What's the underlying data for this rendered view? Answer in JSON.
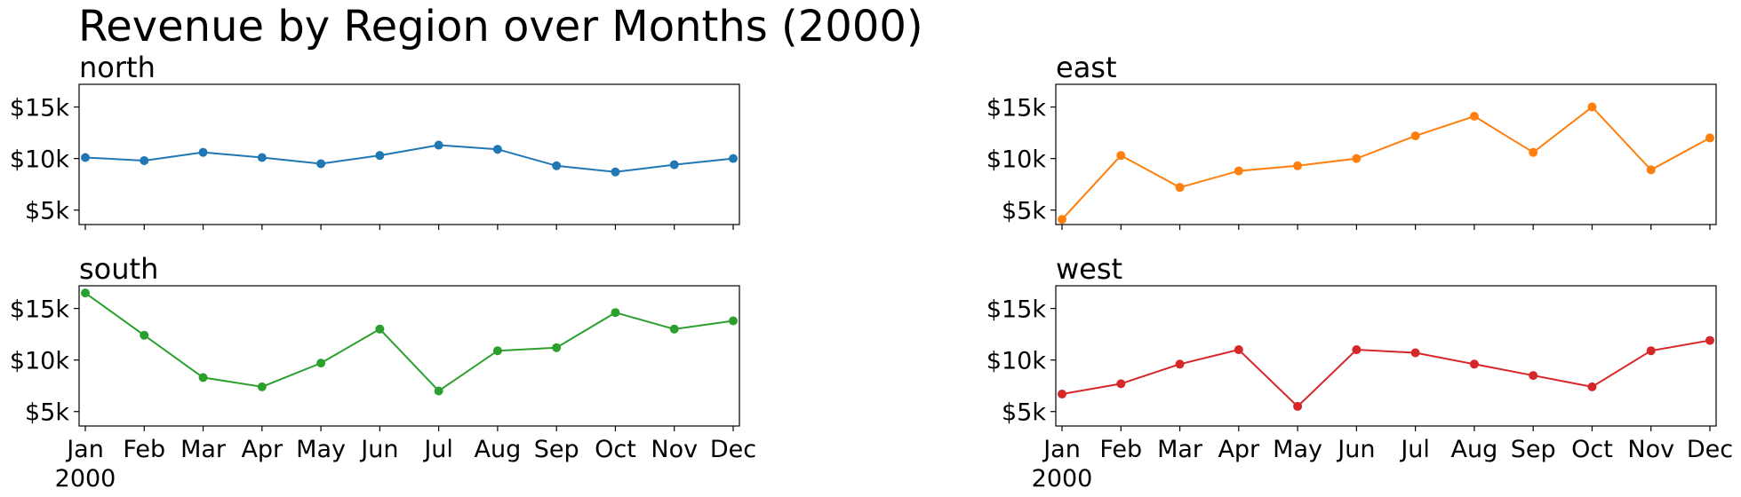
{
  "title": "Revenue by Region over Months (2000)",
  "chart_data": [
    {
      "type": "line",
      "title": "north",
      "color": "#1f77b4",
      "categories": [
        "Jan",
        "Feb",
        "Mar",
        "Apr",
        "May",
        "Jun",
        "Jul",
        "Aug",
        "Sep",
        "Oct",
        "Nov",
        "Dec"
      ],
      "values": [
        10100,
        9800,
        10600,
        10100,
        9500,
        10300,
        11300,
        10900,
        9300,
        8700,
        9400,
        10000
      ],
      "ylim": [
        3600,
        17200
      ],
      "yticks": [
        5000,
        10000,
        15000
      ],
      "ytick_labels": [
        "$5k",
        "$10k",
        "$15k"
      ],
      "xtick_labels_visible": false
    },
    {
      "type": "line",
      "title": "east",
      "color": "#ff7f0e",
      "categories": [
        "Jan",
        "Feb",
        "Mar",
        "Apr",
        "May",
        "Jun",
        "Jul",
        "Aug",
        "Sep",
        "Oct",
        "Nov",
        "Dec"
      ],
      "values": [
        4100,
        10300,
        7200,
        8800,
        9300,
        10000,
        12200,
        14100,
        10600,
        15000,
        8900,
        12000
      ],
      "ylim": [
        3600,
        17200
      ],
      "yticks": [
        5000,
        10000,
        15000
      ],
      "ytick_labels": [
        "$5k",
        "$10k",
        "$15k"
      ],
      "xtick_labels_visible": false
    },
    {
      "type": "line",
      "title": "south",
      "color": "#2ca02c",
      "categories": [
        "Jan",
        "Feb",
        "Mar",
        "Apr",
        "May",
        "Jun",
        "Jul",
        "Aug",
        "Sep",
        "Oct",
        "Nov",
        "Dec"
      ],
      "values": [
        16500,
        12400,
        8300,
        7400,
        9700,
        13000,
        7000,
        10900,
        11200,
        14600,
        13000,
        13800
      ],
      "ylim": [
        3600,
        17200
      ],
      "yticks": [
        5000,
        10000,
        15000
      ],
      "ytick_labels": [
        "$5k",
        "$10k",
        "$15k"
      ],
      "xtick_labels_visible": true,
      "xtick_labels": [
        "Jan",
        "Feb",
        "Mar",
        "Apr",
        "May",
        "Jun",
        "Jul",
        "Aug",
        "Sep",
        "Oct",
        "Nov",
        "Dec"
      ],
      "year_label": "2000"
    },
    {
      "type": "line",
      "title": "west",
      "color": "#d62728",
      "categories": [
        "Jan",
        "Feb",
        "Mar",
        "Apr",
        "May",
        "Jun",
        "Jul",
        "Aug",
        "Sep",
        "Oct",
        "Nov",
        "Dec"
      ],
      "values": [
        6700,
        7700,
        9600,
        11000,
        5500,
        11000,
        10700,
        9600,
        8500,
        7400,
        10900,
        11900
      ],
      "ylim": [
        3600,
        17200
      ],
      "yticks": [
        5000,
        10000,
        15000
      ],
      "ytick_labels": [
        "$5k",
        "$10k",
        "$15k"
      ],
      "xtick_labels_visible": true,
      "xtick_labels": [
        "Jan",
        "Feb",
        "Mar",
        "Apr",
        "May",
        "Jun",
        "Jul",
        "Aug",
        "Sep",
        "Oct",
        "Nov",
        "Dec"
      ],
      "year_label": "2000"
    }
  ]
}
